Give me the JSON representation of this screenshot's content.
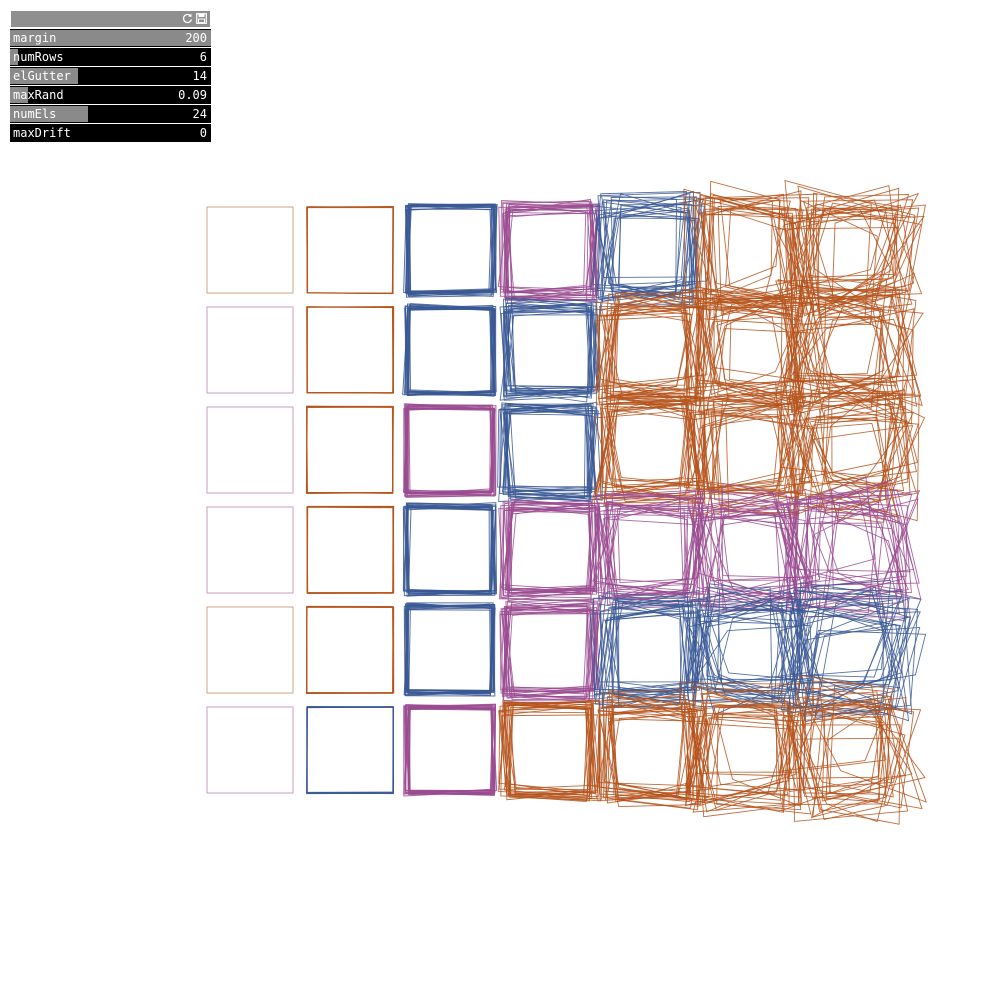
{
  "panel": {
    "icons": [
      "reload-icon",
      "save-icon"
    ],
    "sliders": [
      {
        "id": "margin",
        "label": "margin",
        "value": "200",
        "fraction": 1.0
      },
      {
        "id": "numRows",
        "label": "numRows",
        "value": "6",
        "fraction": 0.04
      },
      {
        "id": "elGutter",
        "label": "elGutter",
        "value": "14",
        "fraction": 0.34
      },
      {
        "id": "maxRand",
        "label": "maxRand",
        "value": "0.09",
        "fraction": 0.09
      },
      {
        "id": "numEls",
        "label": "numEls",
        "value": "24",
        "fraction": 0.39
      },
      {
        "id": "maxDrift",
        "label": "maxDrift",
        "value": "0",
        "fraction": 0.0
      }
    ]
  },
  "art": {
    "colors": {
      "orange": "#b5541c",
      "blue": "#3a5894",
      "purple": "#9a4b90"
    },
    "column_colors": [
      [
        "orange",
        "purple",
        "purple",
        "purple",
        "orange",
        "purple"
      ],
      [
        "orange",
        "orange",
        "orange",
        "orange",
        "orange",
        "blue"
      ],
      [
        "blue",
        "blue",
        "purple",
        "blue",
        "blue",
        "purple"
      ],
      [
        "purple",
        "blue",
        "blue",
        "purple",
        "purple",
        "orange"
      ],
      [
        "blue",
        "orange",
        "orange",
        "purple",
        "blue",
        "orange"
      ],
      [
        "orange",
        "orange",
        "orange",
        "purple",
        "blue",
        "orange"
      ],
      [
        "orange",
        "orange",
        "orange",
        "purple",
        "blue",
        "orange"
      ]
    ]
  }
}
